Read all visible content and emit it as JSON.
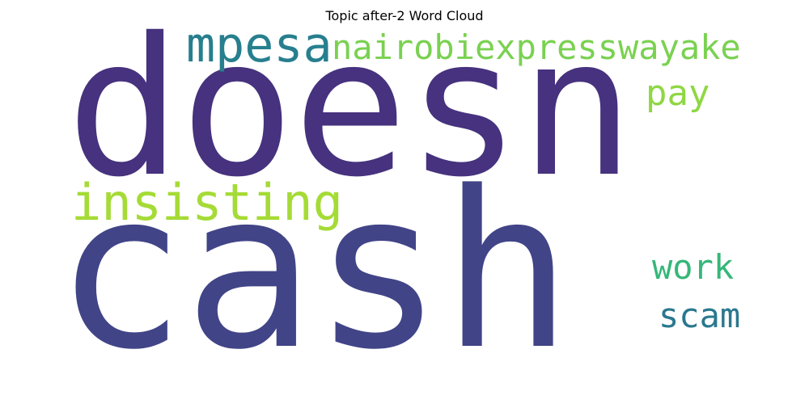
{
  "title": "Topic after-2 Word Cloud",
  "words": {
    "doesn": {
      "text": "doesn",
      "color": "#46327e"
    },
    "cash": {
      "text": "cash",
      "color": "#414487"
    },
    "mpesa": {
      "text": "mpesa",
      "color": "#277f8e"
    },
    "nairobi": {
      "text": "nairobiexpresswayake",
      "color": "#7ad151"
    },
    "pay": {
      "text": "pay",
      "color": "#8fd744"
    },
    "insisting": {
      "text": "insisting",
      "color": "#a5db36"
    },
    "work": {
      "text": "work",
      "color": "#35b779"
    },
    "scam": {
      "text": "scam",
      "color": "#2a788e"
    }
  }
}
